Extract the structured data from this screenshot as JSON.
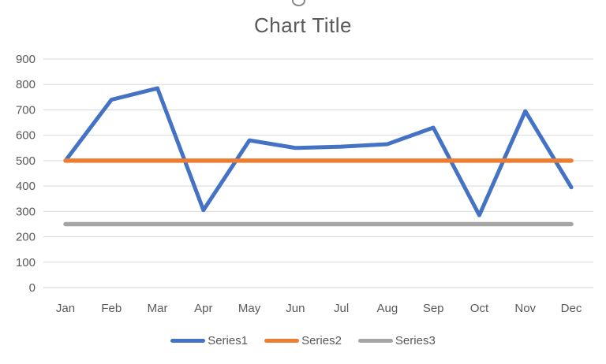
{
  "style": {
    "background": "#ffffff",
    "title_color": "#595959",
    "text_color": "#595959",
    "grid_color": "#d9d9d9",
    "axis_color": "#d3d3d3"
  },
  "chart_data": {
    "type": "line",
    "title": "Chart Title",
    "xlabel": "",
    "ylabel": "",
    "categories": [
      "Jan",
      "Feb",
      "Mar",
      "Apr",
      "May",
      "Jun",
      "Jul",
      "Aug",
      "Sep",
      "Oct",
      "Nov",
      "Dec"
    ],
    "series": [
      {
        "name": "Series1",
        "color": "#4472c4",
        "values": [
          500,
          740,
          785,
          305,
          580,
          550,
          555,
          565,
          630,
          285,
          695,
          395
        ]
      },
      {
        "name": "Series2",
        "color": "#ed7d31",
        "values": [
          500,
          500,
          500,
          500,
          500,
          500,
          500,
          500,
          500,
          500,
          500,
          500
        ]
      },
      {
        "name": "Series3",
        "color": "#a5a5a5",
        "values": [
          250,
          250,
          250,
          250,
          250,
          250,
          250,
          250,
          250,
          250,
          250,
          250
        ]
      }
    ],
    "ylim": [
      0,
      900
    ],
    "yticks": [
      0,
      100,
      200,
      300,
      400,
      500,
      600,
      700,
      800,
      900
    ],
    "grid": true,
    "legend_position": "bottom"
  }
}
